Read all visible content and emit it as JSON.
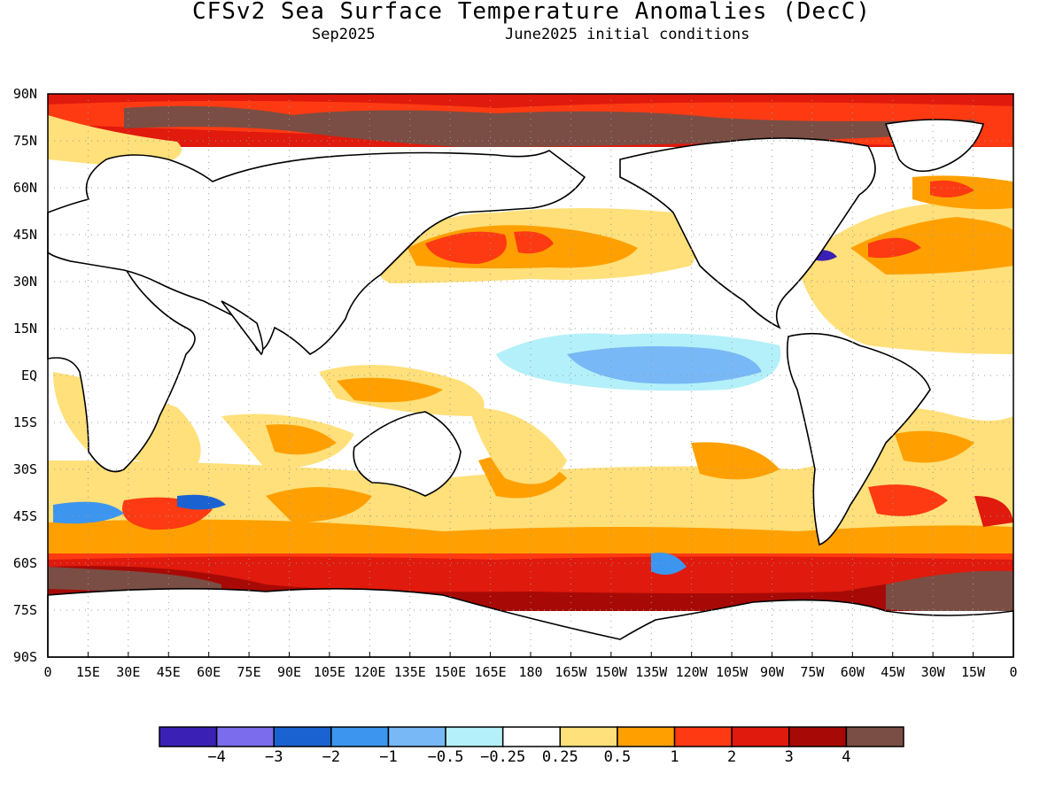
{
  "title": "CFSv2 Sea Surface Temperature Anomalies (DecC)",
  "subtitle_left": "Sep2025",
  "subtitle_right": "June2025 initial conditions",
  "map": {
    "type": "heatmap",
    "projection": "cylindrical equidistant",
    "lon_range": [
      0,
      360
    ],
    "lat_range": [
      -90,
      90
    ],
    "grid": "dotted every 15 degrees",
    "y_ticks": [
      "90N",
      "75N",
      "60N",
      "45N",
      "30N",
      "15N",
      "EQ",
      "15S",
      "30S",
      "45S",
      "60S",
      "75S",
      "90S"
    ],
    "x_ticks": [
      "0",
      "15E",
      "30E",
      "45E",
      "60E",
      "75E",
      "90E",
      "105E",
      "120E",
      "135E",
      "150E",
      "165E",
      "180",
      "165W",
      "150W",
      "135W",
      "120W",
      "105W",
      "90W",
      "75W",
      "60W",
      "45W",
      "30W",
      "15W",
      "0"
    ]
  },
  "colorbar": {
    "colors": [
      "#3a20b4",
      "#7a6cec",
      "#1a62d2",
      "#3c96ef",
      "#78b8f6",
      "#b4f0f9",
      "#ffffff",
      "#ffe07a",
      "#ffa000",
      "#fe3a12",
      "#e01a0c",
      "#a70a06",
      "#7a4e44"
    ],
    "labels": [
      "−4",
      "−3",
      "−2",
      "−1",
      "−0.5",
      "−0.25",
      "0.25",
      "0.5",
      "1",
      "2",
      "3",
      "4"
    ]
  }
}
